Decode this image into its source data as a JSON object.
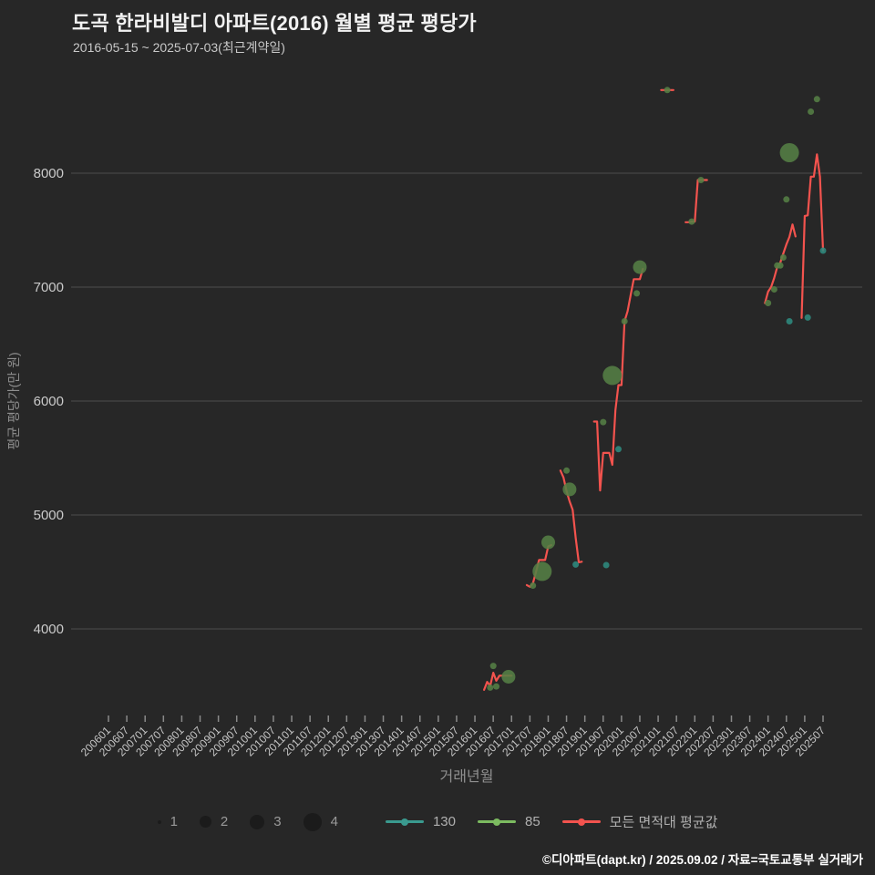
{
  "header": {
    "title": "도곡 한라비발디 아파트(2016) 월별 평균 평당가",
    "subtitle": "2016-05-15 ~ 2025-07-03(최근계약일)"
  },
  "footer": {
    "credit": "©디아파트(dapt.kr) / 2025.09.02 / 자료=국토교통부 실거래가"
  },
  "colors": {
    "background": "#272727",
    "grid": "#4e4e4e",
    "tick_mark": "#8a8a8a",
    "axis_text": "#c6c6c6",
    "axis_title_text": "#8f8f8f",
    "red": "#f3534e",
    "green": "#557f45",
    "green_legend": "#7cbb60",
    "teal": "#2f8b80",
    "teal_legend": "#3a9a8f",
    "size_marker": "#1b1b1b",
    "legend_text": "#9a9a9a",
    "footer_text": "#ffffff",
    "title_text": "#f2f2f2",
    "subtitle_text": "#c9c9c9"
  },
  "chart_data": {
    "type": "scatter-bubble+line",
    "title": "도곡 한라비발디 아파트(2016) 월별 평균 평당가",
    "subtitle": "2016-05-15 ~ 2025-07-03(최근계약일)",
    "xlabel": "거래년월",
    "ylabel": "평균 평당가(만 원)",
    "grid": true,
    "legend_position": "bottom",
    "y_ticks": [
      4000,
      5000,
      6000,
      7000,
      8000
    ],
    "y_range_displayed": [
      3300,
      8900
    ],
    "x_ticks": [
      "200601",
      "200607",
      "200701",
      "200707",
      "200801",
      "200807",
      "200901",
      "200907",
      "201001",
      "201007",
      "201101",
      "201107",
      "201201",
      "201207",
      "201301",
      "201307",
      "201401",
      "201407",
      "201501",
      "201507",
      "201601",
      "201607",
      "201701",
      "201707",
      "201801",
      "201807",
      "201901",
      "201907",
      "202001",
      "202007",
      "202101",
      "202107",
      "202201",
      "202207",
      "202301",
      "202307",
      "202401",
      "202407",
      "202501",
      "202507"
    ],
    "series": [
      {
        "name": "모든 면적대 평균값",
        "kind": "line",
        "color_key": "red",
        "segments": [
          [
            [
              "201604",
              3465
            ],
            [
              "201605",
              3535
            ],
            [
              "201606",
              3500
            ],
            [
              "201607",
              3615
            ],
            [
              "201608",
              3545
            ],
            [
              "201609",
              3590
            ],
            [
              "201610",
              3590
            ],
            [
              "201611",
              3590
            ],
            [
              "201612",
              3590
            ],
            [
              "201701",
              3590
            ]
          ],
          [
            [
              "201706",
              4385
            ],
            [
              "201707",
              4370
            ],
            [
              "201708",
              4400
            ],
            [
              "201709",
              4500
            ],
            [
              "201710",
              4605
            ],
            [
              "201711",
              4605
            ],
            [
              "201712",
              4605
            ],
            [
              "201801",
              4725
            ],
            [
              "201802",
              4735
            ]
          ],
          [
            [
              "201805",
              5390
            ],
            [
              "201806",
              5330
            ],
            [
              "201807",
              5210
            ],
            [
              "201808",
              5120
            ],
            [
              "201809",
              5045
            ],
            [
              "201810",
              4800
            ],
            [
              "201811",
              4585
            ],
            [
              "201812",
              4590
            ]
          ],
          [
            [
              "201904",
              5820
            ],
            [
              "201905",
              5820
            ],
            [
              "201906",
              5215
            ],
            [
              "201907",
              5545
            ],
            [
              "201908",
              5545
            ],
            [
              "201909",
              5545
            ],
            [
              "201910",
              5440
            ],
            [
              "201911",
              5920
            ],
            [
              "201912",
              6140
            ],
            [
              "202001",
              6140
            ],
            [
              "202002",
              6700
            ],
            [
              "202003",
              6790
            ],
            [
              "202004",
              6930
            ],
            [
              "202005",
              7070
            ],
            [
              "202006",
              7070
            ],
            [
              "202007",
              7070
            ],
            [
              "202008",
              7160
            ]
          ],
          [
            [
              "202102",
              8730
            ],
            [
              "202103",
              8730
            ],
            [
              "202104",
              8730
            ],
            [
              "202105",
              8730
            ],
            [
              "202106",
              8730
            ]
          ],
          [
            [
              "202110",
              7570
            ],
            [
              "202111",
              7570
            ],
            [
              "202112",
              7575
            ],
            [
              "202201",
              7575
            ],
            [
              "202202",
              7940
            ],
            [
              "202203",
              7940
            ],
            [
              "202204",
              7940
            ],
            [
              "202205",
              7940
            ]
          ],
          [
            [
              "202312",
              6860
            ],
            [
              "202401",
              6960
            ],
            [
              "202402",
              7000
            ],
            [
              "202403",
              7080
            ],
            [
              "202404",
              7175
            ],
            [
              "202405",
              7215
            ],
            [
              "202406",
              7295
            ],
            [
              "202407",
              7375
            ],
            [
              "202408",
              7440
            ],
            [
              "202409",
              7550
            ],
            [
              "202410",
              7445
            ]
          ],
          [
            [
              "202412",
              6730
            ],
            [
              "202501",
              7625
            ],
            [
              "202502",
              7630
            ],
            [
              "202503",
              7970
            ],
            [
              "202504",
              7970
            ],
            [
              "202505",
              8165
            ],
            [
              "202506",
              7970
            ],
            [
              "202507",
              7320
            ]
          ]
        ]
      },
      {
        "name": "85",
        "kind": "bubble",
        "color_key": "green",
        "points_mvs": [
          [
            "201606",
            3485,
            1
          ],
          [
            "201607",
            3675,
            1
          ],
          [
            "201608",
            3495,
            1
          ],
          [
            "201612",
            3580,
            3
          ],
          [
            "201708",
            4380,
            1
          ],
          [
            "201711",
            4505,
            4
          ],
          [
            "201801",
            4760,
            3
          ],
          [
            "201807",
            5390,
            1
          ],
          [
            "201808",
            5225,
            3
          ],
          [
            "201907",
            5815,
            1
          ],
          [
            "201910",
            6225,
            4
          ],
          [
            "202002",
            6700,
            1
          ],
          [
            "202006",
            6945,
            1
          ],
          [
            "202007",
            7175,
            3
          ],
          [
            "202104",
            8730,
            1
          ],
          [
            "202112",
            7575,
            1
          ],
          [
            "202203",
            7940,
            1
          ],
          [
            "202401",
            6860,
            1
          ],
          [
            "202403",
            6980,
            1
          ],
          [
            "202404",
            7190,
            1
          ],
          [
            "202405",
            7190,
            1
          ],
          [
            "202406",
            7260,
            1
          ],
          [
            "202407",
            7770,
            1
          ],
          [
            "202408",
            8180,
            4
          ],
          [
            "202503",
            8540,
            1
          ],
          [
            "202505",
            8650,
            1
          ]
        ]
      },
      {
        "name": "130",
        "kind": "bubble",
        "color_key": "teal",
        "points_mvs": [
          [
            "201810",
            4565,
            1
          ],
          [
            "201908",
            4560,
            1
          ],
          [
            "201912",
            5578,
            1
          ],
          [
            "202408",
            6700,
            1
          ],
          [
            "202502",
            6733,
            1
          ],
          [
            "202507",
            7320,
            1
          ]
        ]
      }
    ],
    "legend": {
      "size_items": [
        {
          "label": "1",
          "diameter": 4
        },
        {
          "label": "2",
          "diameter": 13
        },
        {
          "label": "3",
          "diameter": 16
        },
        {
          "label": "4",
          "diameter": 20
        }
      ],
      "series_items": [
        {
          "label": "130",
          "color_key": "teal_legend"
        },
        {
          "label": "85",
          "color_key": "green_legend"
        },
        {
          "label": "모든 면적대 평균값",
          "color_key": "red"
        }
      ]
    }
  }
}
